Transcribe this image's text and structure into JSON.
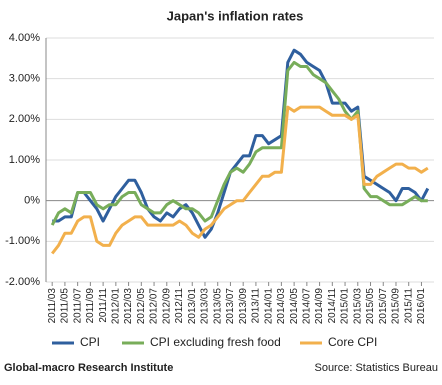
{
  "chart_data": {
    "type": "line",
    "title": "Japan's inflation rates",
    "categories": [
      "2011/03",
      null,
      "2011/05",
      null,
      "2011/07",
      null,
      "2011/09",
      null,
      "2011/11",
      null,
      "2012/01",
      null,
      "2012/03",
      null,
      "2012/05",
      null,
      "2012/07",
      null,
      "2012/09",
      null,
      "2012/11",
      null,
      "2013/01",
      null,
      "2013/03",
      null,
      "2013/05",
      null,
      "2013/07",
      null,
      "2013/09",
      null,
      "2013/11",
      null,
      "2014/01",
      null,
      "2014/03",
      null,
      "2014/05",
      null,
      "2014/07",
      null,
      "2014/09",
      null,
      "2014/11",
      null,
      "2015/01",
      null,
      "2015/03",
      null,
      "2015/05",
      null,
      "2015/07",
      null,
      "2015/09",
      null,
      "2015/11",
      null,
      "2016/01",
      null
    ],
    "series": [
      {
        "name": "CPI",
        "color": "#2f5f9e",
        "values": [
          -0.5,
          -0.5,
          -0.4,
          -0.4,
          0.2,
          0.2,
          0.0,
          -0.2,
          -0.5,
          -0.2,
          0.1,
          0.3,
          0.5,
          0.5,
          0.2,
          -0.2,
          -0.4,
          -0.5,
          -0.3,
          -0.4,
          -0.2,
          -0.1,
          -0.3,
          -0.6,
          -0.9,
          -0.7,
          -0.3,
          0.2,
          0.7,
          0.9,
          1.1,
          1.1,
          1.6,
          1.6,
          1.4,
          1.5,
          1.6,
          3.4,
          3.7,
          3.6,
          3.4,
          3.3,
          3.2,
          2.9,
          2.4,
          2.4,
          2.4,
          2.2,
          2.3,
          0.6,
          0.5,
          0.4,
          0.3,
          0.2,
          0.0,
          0.3,
          0.3,
          0.2,
          0.0,
          0.3
        ]
      },
      {
        "name": "CPI excluding fresh food",
        "color": "#78ad5a",
        "values": [
          -0.6,
          -0.3,
          -0.2,
          -0.3,
          0.2,
          0.2,
          0.2,
          -0.1,
          -0.2,
          -0.1,
          -0.1,
          0.1,
          0.2,
          0.2,
          -0.1,
          -0.2,
          -0.3,
          -0.3,
          -0.1,
          0.0,
          -0.1,
          -0.2,
          -0.2,
          -0.3,
          -0.5,
          -0.4,
          0.0,
          0.4,
          0.7,
          0.8,
          0.7,
          0.9,
          1.2,
          1.3,
          1.3,
          1.3,
          1.3,
          3.2,
          3.4,
          3.3,
          3.3,
          3.1,
          3.0,
          2.9,
          2.7,
          2.5,
          2.2,
          2.0,
          2.2,
          0.3,
          0.1,
          0.1,
          0.0,
          -0.1,
          -0.1,
          -0.1,
          0.0,
          0.1,
          0.0,
          0.0
        ]
      },
      {
        "name": "Core CPI",
        "color": "#f2b04c",
        "values": [
          -1.3,
          -1.1,
          -0.8,
          -0.8,
          -0.5,
          -0.4,
          -0.4,
          -1.0,
          -1.1,
          -1.1,
          -0.8,
          -0.6,
          -0.5,
          -0.4,
          -0.4,
          -0.6,
          -0.6,
          -0.6,
          -0.6,
          -0.6,
          -0.5,
          -0.6,
          -0.8,
          -0.9,
          -0.7,
          -0.6,
          -0.4,
          -0.2,
          -0.1,
          0.0,
          0.0,
          0.2,
          0.4,
          0.6,
          0.6,
          0.7,
          0.7,
          2.3,
          2.2,
          2.3,
          2.3,
          2.3,
          2.3,
          2.2,
          2.1,
          2.1,
          2.1,
          2.0,
          2.1,
          0.4,
          0.4,
          0.6,
          0.7,
          0.8,
          0.9,
          0.9,
          0.8,
          0.8,
          0.7,
          0.8
        ]
      }
    ],
    "ylim": [
      -2,
      4
    ],
    "yticks": [
      {
        "value": -2,
        "label": "-2.00%"
      },
      {
        "value": -1,
        "label": "-1.00%"
      },
      {
        "value": 0,
        "label": "0%"
      },
      {
        "value": 1,
        "label": "1.00%"
      },
      {
        "value": 2,
        "label": "2.00%"
      },
      {
        "value": 3,
        "label": "3.00%"
      },
      {
        "value": 4,
        "label": "4.00%"
      }
    ],
    "grid": true
  },
  "footer": {
    "left": "Global-macro Research Institute",
    "right": "Source: Statistics Bureau"
  }
}
